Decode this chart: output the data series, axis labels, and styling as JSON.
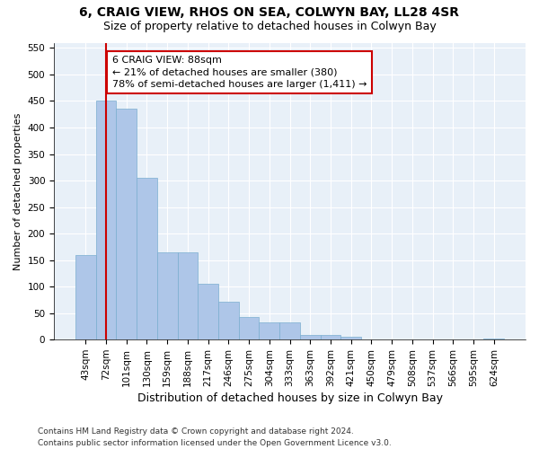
{
  "title1": "6, CRAIG VIEW, RHOS ON SEA, COLWYN BAY, LL28 4SR",
  "title2": "Size of property relative to detached houses in Colwyn Bay",
  "xlabel": "Distribution of detached houses by size in Colwyn Bay",
  "ylabel": "Number of detached properties",
  "categories": [
    "43sqm",
    "72sqm",
    "101sqm",
    "130sqm",
    "159sqm",
    "188sqm",
    "217sqm",
    "246sqm",
    "275sqm",
    "304sqm",
    "333sqm",
    "363sqm",
    "392sqm",
    "421sqm",
    "450sqm",
    "479sqm",
    "508sqm",
    "537sqm",
    "566sqm",
    "595sqm",
    "624sqm"
  ],
  "values": [
    160,
    450,
    435,
    305,
    165,
    165,
    105,
    72,
    43,
    33,
    33,
    8,
    8,
    5,
    1,
    1,
    1,
    1,
    1,
    1,
    2
  ],
  "bar_color": "#aec6e8",
  "bar_edge_color": "#7aaed0",
  "vline_x_index": 1,
  "annotation_text_line1": "6 CRAIG VIEW: 88sqm",
  "annotation_text_line2": "← 21% of detached houses are smaller (380)",
  "annotation_text_line3": "78% of semi-detached houses are larger (1,411) →",
  "ylim": [
    0,
    560
  ],
  "yticks": [
    0,
    50,
    100,
    150,
    200,
    250,
    300,
    350,
    400,
    450,
    500,
    550
  ],
  "annotation_box_facecolor": "#ffffff",
  "annotation_box_edgecolor": "#cc0000",
  "vline_color": "#cc0000",
  "background_color": "#e8f0f8",
  "grid_color": "#ffffff",
  "footer_line1": "Contains HM Land Registry data © Crown copyright and database right 2024.",
  "footer_line2": "Contains public sector information licensed under the Open Government Licence v3.0.",
  "title1_fontsize": 10,
  "title2_fontsize": 9,
  "xlabel_fontsize": 9,
  "ylabel_fontsize": 8,
  "tick_fontsize": 7.5,
  "annotation_fontsize": 8,
  "footer_fontsize": 6.5
}
